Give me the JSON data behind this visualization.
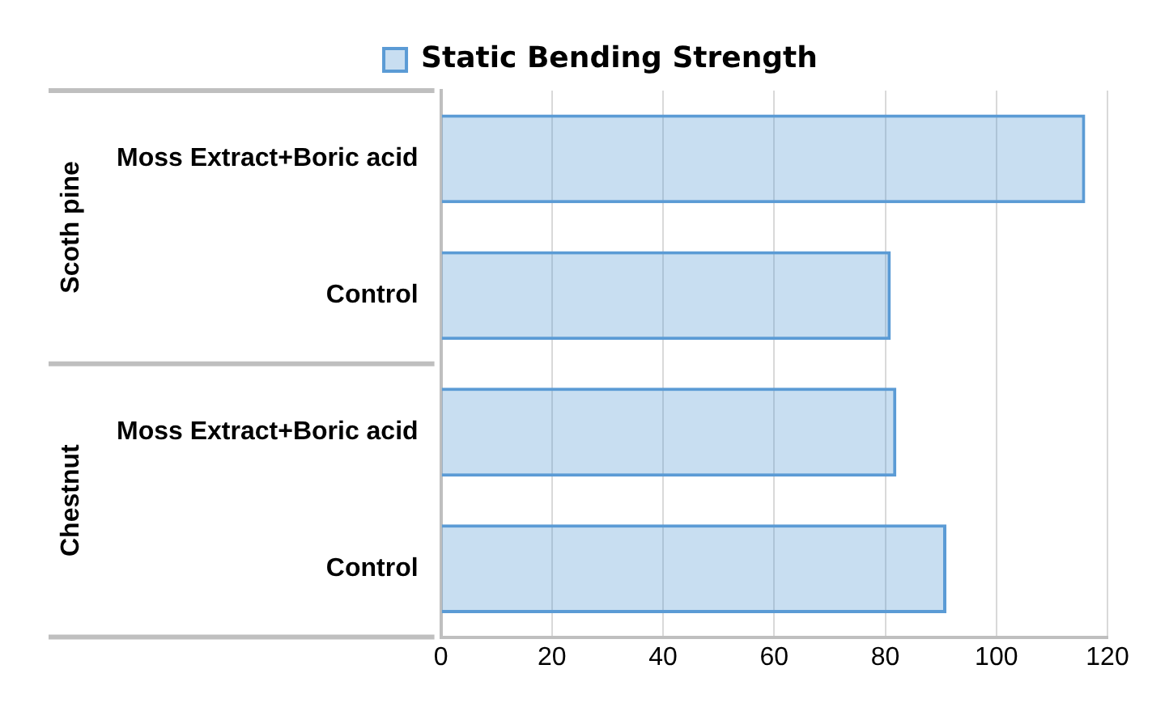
{
  "chart_data": {
    "type": "bar",
    "orientation": "horizontal",
    "categories": [
      "Moss Extract+Boric acid",
      "Control",
      "Moss Extract+Boric acid",
      "Control"
    ],
    "series": [
      {
        "name": "Static Bending Strength",
        "color": "#5b9bd5",
        "values": [
          116,
          81,
          82,
          91
        ]
      }
    ],
    "annotations": [
      "Scoth pine",
      "Chestnut"
    ],
    "xlim": [
      0,
      120
    ],
    "xticks": [
      0,
      20,
      40,
      60,
      80,
      100,
      120
    ],
    "grid": "x",
    "legend": "top"
  }
}
